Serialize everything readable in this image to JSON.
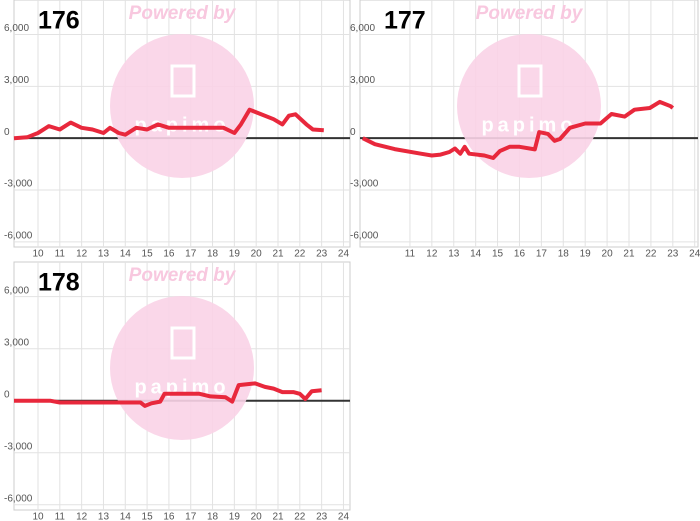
{
  "chart_data": [
    {
      "type": "line",
      "title": "176",
      "watermark": "Powered by",
      "logo": "papimo",
      "color": "#e8283c",
      "grid": true,
      "x": [
        8.9,
        9.5,
        10,
        10.5,
        11,
        11.5,
        12,
        12.5,
        13,
        13.3,
        13.7,
        14,
        14.5,
        15,
        15.5,
        16,
        17,
        18,
        18.5,
        19,
        19.3,
        19.7,
        20.2,
        20.8,
        21.2,
        21.5,
        21.8,
        22.3,
        22.6,
        23.1
      ],
      "values": [
        0,
        50,
        300,
        700,
        500,
        900,
        600,
        500,
        300,
        600,
        300,
        200,
        600,
        500,
        800,
        600,
        600,
        600,
        600,
        300,
        800,
        1650,
        1400,
        1100,
        800,
        1300,
        1380,
        800,
        500,
        460
      ],
      "xlim": [
        8.9,
        24.3
      ],
      "xticks": [
        10,
        11,
        12,
        13,
        14,
        15,
        16,
        17,
        18,
        19,
        20,
        21,
        22,
        23,
        24
      ],
      "ylim": [
        -6300,
        8000
      ],
      "yticks": [
        {
          "value": 6000,
          "label": "6,000"
        },
        {
          "value": 3000,
          "label": "3,000"
        },
        0,
        {
          "value": -3000,
          "label": "-3,000"
        },
        {
          "value": -6000,
          "label": "-6,000"
        }
      ]
    },
    {
      "type": "line",
      "title": "177",
      "watermark": "Powered by",
      "logo": "papimo",
      "color": "#e8283c",
      "grid": true,
      "x": [
        8.85,
        9.4,
        10.3,
        11.5,
        12,
        12.4,
        12.8,
        13.05,
        13.3,
        13.5,
        13.7,
        14.4,
        14.8,
        15.1,
        15.55,
        16,
        16.7,
        16.9,
        17.3,
        17.6,
        17.85,
        18.3,
        19,
        19.7,
        20.2,
        20.8,
        21.25,
        21.95,
        22.4,
        22.9,
        23
      ],
      "values": [
        0,
        -350,
        -630,
        -900,
        -1000,
        -950,
        -800,
        -600,
        -900,
        -500,
        -900,
        -1000,
        -1150,
        -750,
        -500,
        -500,
        -650,
        350,
        250,
        -150,
        -50,
        600,
        850,
        850,
        1400,
        1250,
        1650,
        1750,
        2100,
        1850,
        1750
      ],
      "xlim": [
        8.72,
        24.15
      ],
      "xticks": [
        11,
        12,
        13,
        14,
        15,
        16,
        17,
        18,
        19,
        20,
        21,
        22,
        23,
        24
      ],
      "ylim": [
        -6300,
        8000
      ],
      "yticks": [
        {
          "value": 6000,
          "label": "6,000"
        },
        {
          "value": 3000,
          "label": "3,000"
        },
        0,
        {
          "value": -3000,
          "label": "-3,000"
        },
        {
          "value": -6000,
          "label": "-6,000"
        }
      ]
    },
    {
      "type": "line",
      "title": "178",
      "watermark": "Powered by",
      "logo": "papimo",
      "color": "#e8283c",
      "grid": true,
      "x": [
        8.9,
        10.55,
        11,
        14.7,
        14.9,
        15.2,
        15.6,
        15.8,
        16.3,
        17.4,
        17.9,
        18.6,
        18.9,
        19.2,
        19.95,
        20.4,
        20.8,
        21.2,
        21.7,
        22,
        22.25,
        22.55,
        23
      ],
      "values": [
        0,
        0,
        -100,
        -100,
        -300,
        -150,
        -50,
        400,
        400,
        400,
        250,
        200,
        -50,
        900,
        1000,
        800,
        700,
        500,
        500,
        400,
        100,
        550,
        600
      ],
      "xlim": [
        8.9,
        24.3
      ],
      "xticks": [
        10,
        11,
        12,
        13,
        14,
        15,
        16,
        17,
        18,
        19,
        20,
        21,
        22,
        23,
        24
      ],
      "ylim": [
        -6300,
        8000
      ],
      "yticks": [
        {
          "value": 6000,
          "label": "6,000"
        },
        {
          "value": 3000,
          "label": "3,000"
        },
        0,
        {
          "value": -3000,
          "label": "-3,000"
        },
        {
          "value": -6000,
          "label": "-6,000"
        }
      ]
    }
  ]
}
